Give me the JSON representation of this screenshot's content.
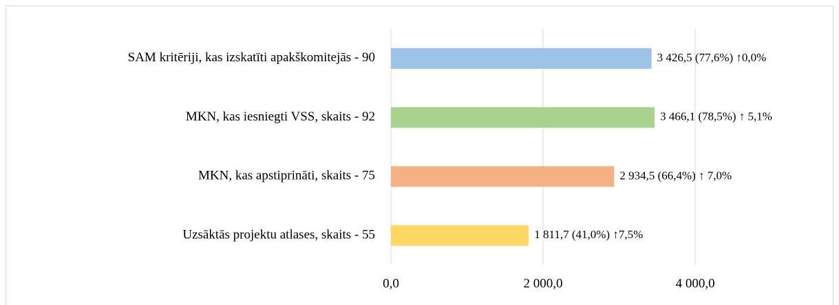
{
  "chart_data": {
    "type": "bar",
    "orientation": "horizontal",
    "categories": [
      "SAM kritēriji, kas izskatīti apakškomitejās - 90",
      "MKN, kas iesniegti VSS, skaits - 92",
      "MKN, kas apstiprināti, skaits - 75",
      "Uzsāktās projektu atlases, skaits - 55"
    ],
    "values": [
      3426.5,
      3466.1,
      2934.5,
      1811.7
    ],
    "value_labels": [
      "3 426,5 (77,6%)  ↑0,0%",
      "3 466,1 (78,5%) ↑ 5,1%",
      "2 934,5 (66,4%) ↑ 7,0%",
      "1 811,7 (41,0%) ↑7,5%"
    ],
    "colors": [
      "#9dc3e6",
      "#a9d18e",
      "#f4b183",
      "#ffd966"
    ],
    "xlim": [
      0,
      5800
    ],
    "xticks": [
      {
        "value": 0,
        "label": "0,0"
      },
      {
        "value": 2000,
        "label": "2 000,0"
      },
      {
        "value": 4000,
        "label": "4 000,0"
      }
    ],
    "grid": true
  }
}
